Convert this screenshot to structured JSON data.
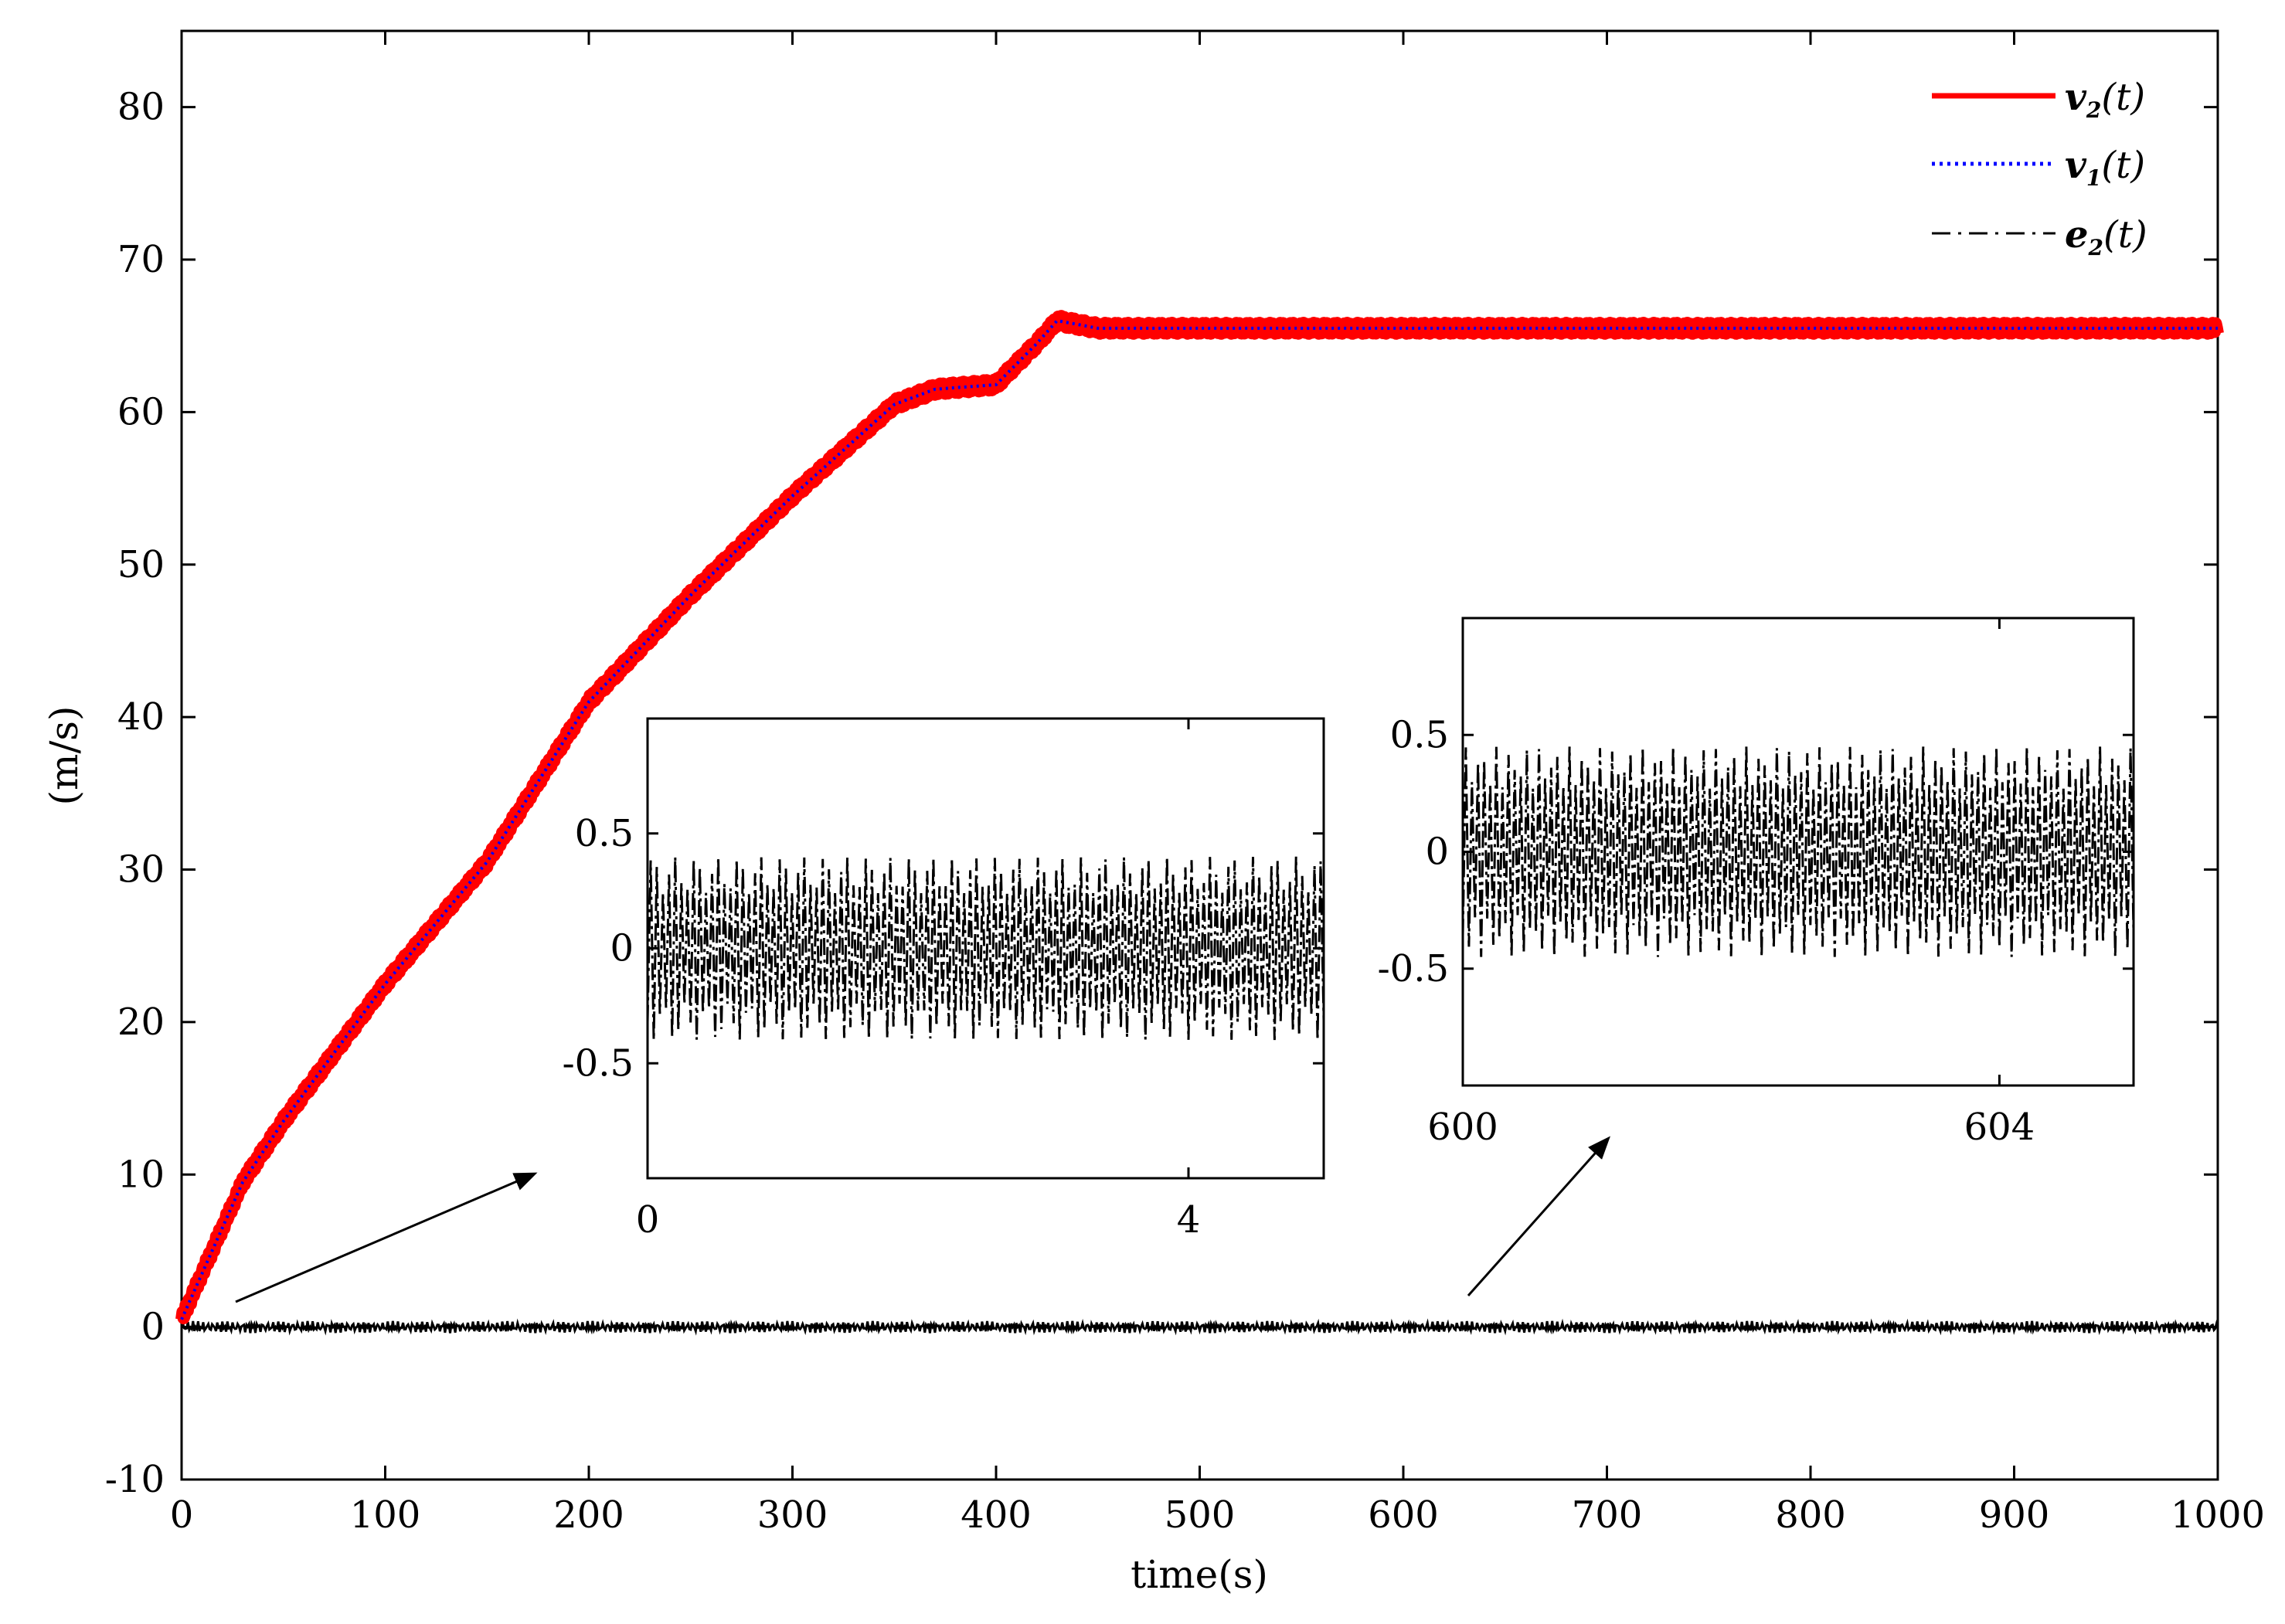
{
  "chart_data": [
    {
      "type": "line",
      "xlabel": "time(s)",
      "ylabel": "(m/s)",
      "xlim": [
        0,
        1000
      ],
      "ylim": [
        -10,
        85
      ],
      "x_ticks": [
        0,
        100,
        200,
        300,
        400,
        500,
        600,
        700,
        800,
        900,
        1000
      ],
      "y_ticks": [
        -10,
        0,
        10,
        20,
        30,
        40,
        50,
        60,
        70,
        80
      ],
      "grid": false,
      "legend_position": "top-right",
      "legend": [
        {
          "label": "v",
          "sub": "2",
          "suffix": "(t)",
          "color": "#ff0000",
          "style": "solid"
        },
        {
          "label": "v",
          "sub": "1",
          "suffix": "(t)",
          "color": "#0000ff",
          "style": "dotted"
        },
        {
          "label": "e",
          "sub": "2",
          "suffix": "(t)",
          "color": "#000000",
          "style": "dash-dot"
        }
      ],
      "series": [
        {
          "name": "v2(t)",
          "color": "#ff0000",
          "x": [
            0,
            10,
            20,
            30,
            50,
            100,
            150,
            200,
            250,
            300,
            350,
            370,
            400,
            420,
            430,
            450,
            500,
            600,
            700,
            800,
            900,
            1000
          ],
          "y": [
            0.5,
            3.5,
            6.5,
            9.5,
            13.5,
            22.5,
            30.5,
            41,
            48,
            54.5,
            60.5,
            61.5,
            61.8,
            64.5,
            66,
            65.5,
            65.5,
            65.5,
            65.5,
            65.5,
            65.5,
            65.5
          ]
        },
        {
          "name": "v1(t)",
          "color": "#0000ff",
          "x": [
            0,
            10,
            20,
            30,
            50,
            100,
            150,
            200,
            250,
            300,
            350,
            370,
            400,
            420,
            430,
            450,
            500,
            600,
            700,
            800,
            900,
            1000
          ],
          "y": [
            0.5,
            3.5,
            6.5,
            9.5,
            13.5,
            22.5,
            30.5,
            41,
            48,
            54.5,
            60.5,
            61.5,
            61.8,
            64.5,
            66,
            65.5,
            65.5,
            65.5,
            65.5,
            65.5,
            65.5,
            65.5
          ]
        },
        {
          "name": "e2(t)",
          "color": "#000000",
          "x": [
            0,
            1000
          ],
          "y": [
            0,
            0
          ],
          "amplitude": 0.4
        }
      ]
    },
    {
      "type": "line",
      "xlim": [
        0,
        5
      ],
      "ylim": [
        -1,
        1
      ],
      "x_ticks": [
        0,
        4
      ],
      "y_ticks": [
        0.5,
        0,
        -0.5
      ],
      "series": [
        {
          "name": "e2(t)",
          "color": "#000000",
          "amplitude": 0.4
        }
      ]
    },
    {
      "type": "line",
      "xlim": [
        600,
        605
      ],
      "ylim": [
        -1,
        1
      ],
      "x_ticks": [
        600,
        604
      ],
      "y_ticks": [
        0.5,
        0,
        -0.5
      ],
      "series": [
        {
          "name": "e2(t)",
          "color": "#000000",
          "amplitude": 0.45
        }
      ]
    }
  ]
}
